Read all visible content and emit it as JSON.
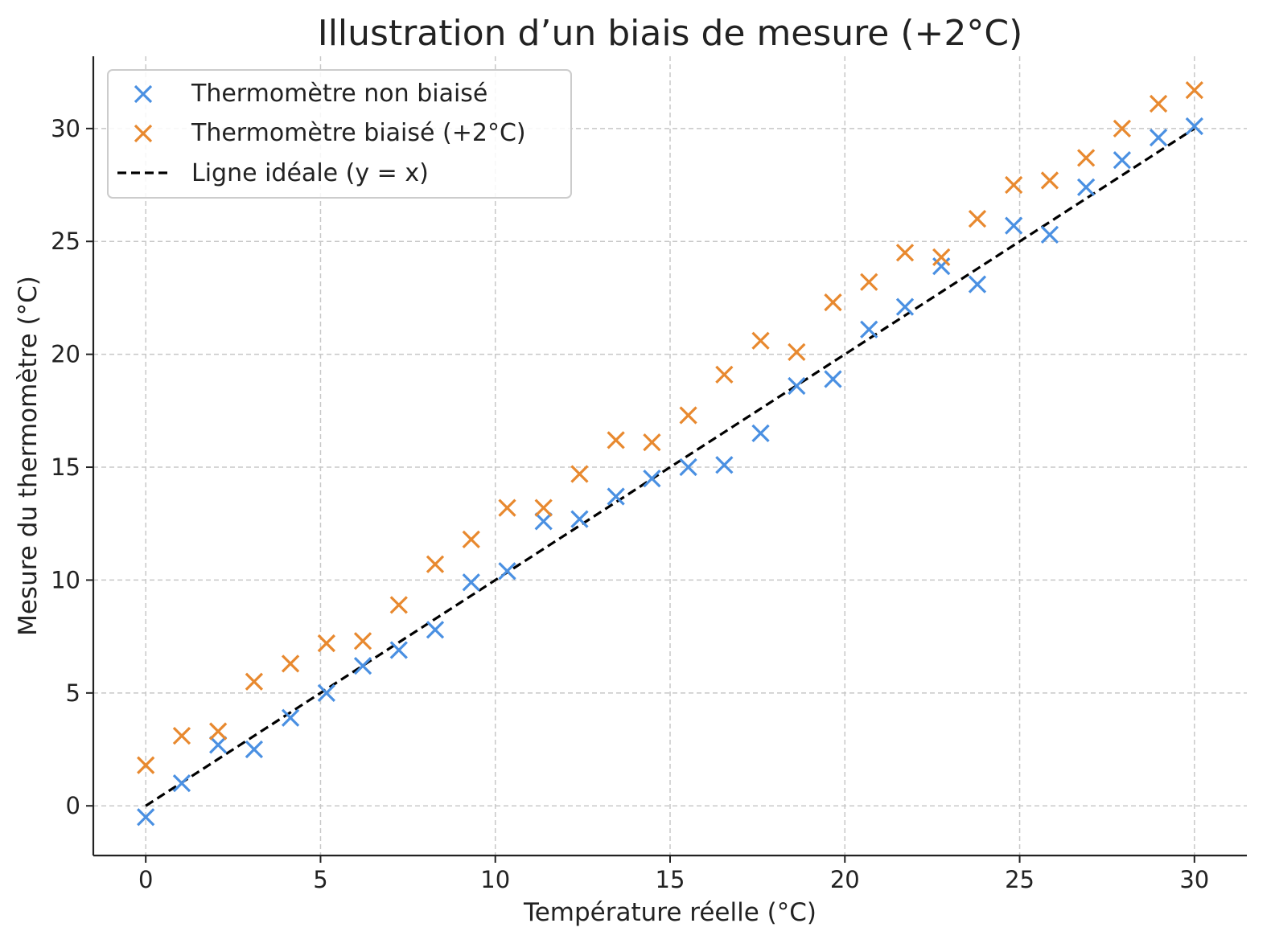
{
  "chart_data": {
    "type": "scatter",
    "title": "Illustration d’un biais de mesure (+2°C)",
    "xlabel": "Température réelle (°C)",
    "ylabel": "Mesure du thermomètre (°C)",
    "xlim": [
      -1.5,
      31.5
    ],
    "ylim": [
      -2.2,
      33.2
    ],
    "xticks": [
      0,
      5,
      10,
      15,
      20,
      25,
      30
    ],
    "yticks": [
      0,
      5,
      10,
      15,
      20,
      25,
      30
    ],
    "grid": true,
    "legend_position": "top-left",
    "x": [
      0,
      1.03,
      2.07,
      3.1,
      4.14,
      5.17,
      6.21,
      7.24,
      8.28,
      9.31,
      10.34,
      11.38,
      12.41,
      13.45,
      14.48,
      15.52,
      16.55,
      17.59,
      18.62,
      19.66,
      20.69,
      21.72,
      22.76,
      23.79,
      24.83,
      25.86,
      26.9,
      27.93,
      28.97,
      30
    ],
    "series": [
      {
        "name": "Thermomètre non biaisé",
        "marker": "x",
        "color": "#4a90e2",
        "values": [
          -0.5,
          1.0,
          2.7,
          2.5,
          3.9,
          5.0,
          6.2,
          6.9,
          7.8,
          9.9,
          10.4,
          12.6,
          12.7,
          13.7,
          14.5,
          15.0,
          15.1,
          16.5,
          18.6,
          18.9,
          21.1,
          22.1,
          23.9,
          23.1,
          25.7,
          25.3,
          27.4,
          28.6,
          29.6,
          30.1
        ]
      },
      {
        "name": "Thermomètre biaisé (+2°C)",
        "marker": "x",
        "color": "#e8892f",
        "values": [
          1.8,
          3.1,
          3.3,
          5.5,
          6.3,
          7.2,
          7.3,
          8.9,
          10.7,
          11.8,
          13.2,
          13.2,
          14.7,
          16.2,
          16.1,
          17.3,
          19.1,
          20.6,
          20.1,
          22.3,
          23.2,
          24.5,
          24.3,
          26.0,
          27.5,
          27.7,
          28.7,
          30.0,
          31.1,
          31.7
        ]
      },
      {
        "name": "Ligne idéale (y = x)",
        "type": "line",
        "style": "dashed",
        "color": "#000000",
        "x": [
          0,
          30
        ],
        "values": [
          0,
          30
        ]
      }
    ]
  }
}
